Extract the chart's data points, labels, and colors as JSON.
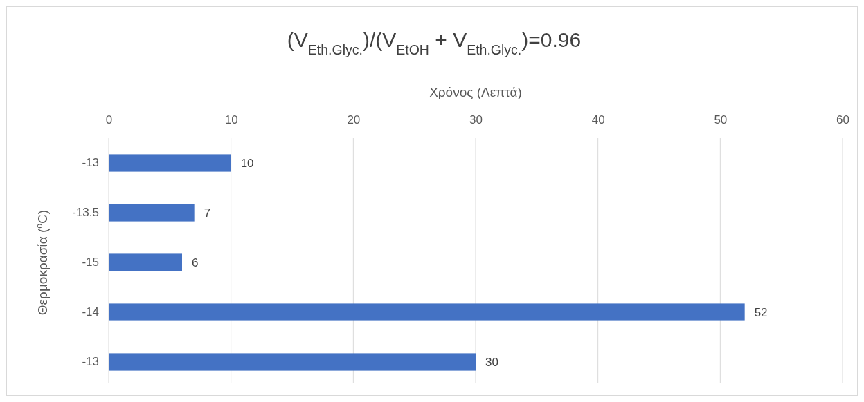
{
  "chart_data": {
    "type": "bar",
    "orientation": "horizontal",
    "title": "(V$_{Eth.Glyc.}$)/(V$_{EtOH}$ + V$_{Eth.Glyc.}$)=0.96",
    "xlabel": "Χρόνος (Λεπτά)",
    "ylabel": "Θερμοκρασία ($^{o}$C)",
    "categories": [
      "-13",
      "-13.5",
      "-15",
      "-14",
      "-13"
    ],
    "values": [
      10,
      7,
      6,
      52,
      30
    ],
    "color": "#4472c4",
    "xlim": [
      0,
      60
    ],
    "xticks": [
      0,
      10,
      20,
      30,
      40,
      50,
      60
    ],
    "grid": "x",
    "data_labels": true
  }
}
